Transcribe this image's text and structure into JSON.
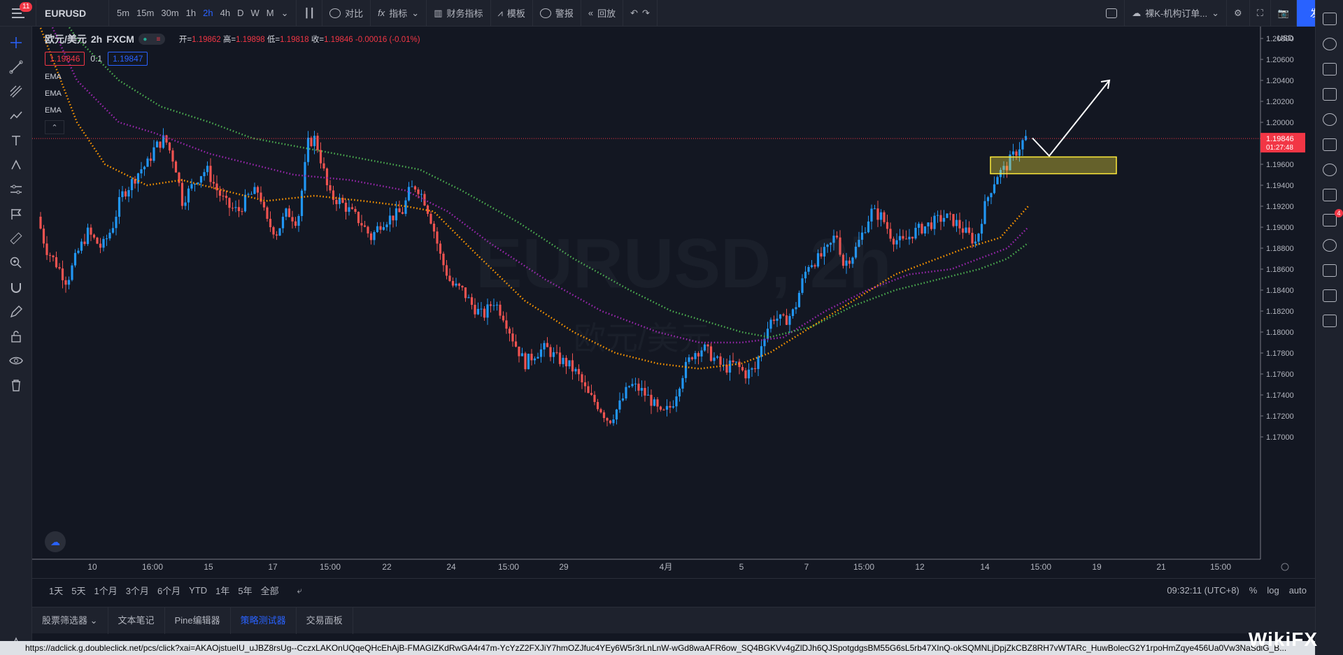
{
  "topbar": {
    "notifications": "11",
    "symbol": "EURUSD",
    "intervals": [
      "5m",
      "15m",
      "30m",
      "1h",
      "2h",
      "4h",
      "D",
      "W",
      "M"
    ],
    "active_interval": "2h",
    "compare": "对比",
    "indicators": "指标",
    "financials": "财务指标",
    "templates": "模板",
    "alerts": "警报",
    "replay": "回放",
    "layout_name": "裸K-机构订单...",
    "publish": "发表"
  },
  "legend": {
    "symbol": "欧元/美元",
    "interval": "2h",
    "exchange": "FXCM",
    "open_label": "开=",
    "open": "1.19862",
    "high_label": "高=",
    "high": "1.19898",
    "low_label": "低=",
    "low": "1.19818",
    "close_label": "收=",
    "close": "1.19846",
    "change": "-0.00016 (-0.01%)",
    "bid": "1.19846",
    "spread": "0.1",
    "ask": "1.19847",
    "ema_labels": [
      "EMA",
      "EMA",
      "EMA"
    ]
  },
  "watermark": {
    "title": "EURUSD, 2h",
    "subtitle": "欧元/美元"
  },
  "price_axis": {
    "currency": "USD",
    "labels": [
      "1.20800",
      "1.20600",
      "1.20400",
      "1.20200",
      "1.20000",
      "1.19800",
      "1.19600",
      "1.19400",
      "1.19200",
      "1.19000",
      "1.18800",
      "1.18600",
      "1.18400",
      "1.18200",
      "1.18000",
      "1.17800",
      "1.17600",
      "1.17400",
      "1.17200",
      "1.17000"
    ],
    "last_price": "1.19846",
    "countdown": "01:27:48"
  },
  "time_axis": {
    "labels": [
      "10",
      "16:00",
      "15",
      "17",
      "15:00",
      "22",
      "24",
      "15:00",
      "29",
      "4月",
      "5",
      "7",
      "15:00",
      "12",
      "14",
      "15:00",
      "19",
      "21",
      "15:00"
    ]
  },
  "range_bar": {
    "ranges": [
      "1天",
      "5天",
      "1个月",
      "3个月",
      "6个月",
      "YTD",
      "1年",
      "5年",
      "全部"
    ],
    "clock": "09:32:11 (UTC+8)",
    "percent": "%",
    "log": "log",
    "auto": "auto"
  },
  "bottom_tabs": {
    "items": [
      "股票筛选器",
      "文本笔记",
      "Pine编辑器",
      "策略测试器",
      "交易面板"
    ],
    "active": "策略测试器"
  },
  "status_url": "https://adclick.g.doubleclick.net/pcs/click?xai=AKAOjstueIU_uJBZ8rsUg--CczxLAKOnUQqeQHcEhAjB-FMAGlZKdRwGA4r47m-YcYzZ2FXJiY7hmOZJfuc4YEy6W5r3rLnLnW-wGd8waAFR6ow_SQ4BGKVv4gZlDJh6QJSpotgdgsBM55G6sL5rb47XInQ-okSQMNLjDpjZkCBZ8RH7vWTARc_HuwBolecG2Y1rpoHmZqye456Ua0Vw3NaSdlG_B...",
  "right_badge": "4",
  "brand": "WikiFX",
  "colors": {
    "up": "#2196f3",
    "down": "#ef5350",
    "ema_fast": "#ff9800",
    "ema_mid": "#9c27b0",
    "ema_slow": "#4caf50",
    "zone": "#ffeb3b"
  }
}
